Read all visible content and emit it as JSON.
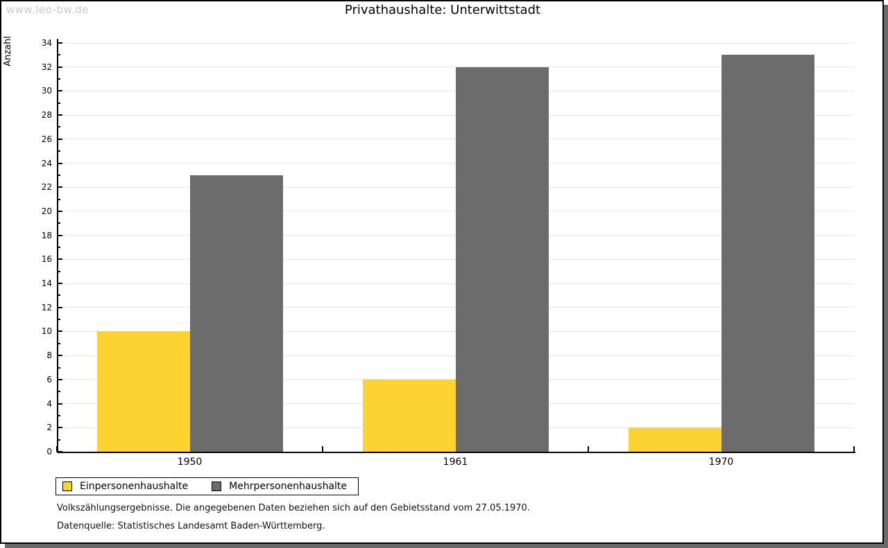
{
  "watermark": "www.leo-bw.de",
  "title": "Privathaushalte: Unterwittstadt",
  "chart_data": {
    "type": "bar",
    "title": "Privathaushalte: Unterwittstadt",
    "categories": [
      "1950",
      "1961",
      "1970"
    ],
    "series": [
      {
        "name": "Einpersonenhaushalte",
        "color": "#fcd330",
        "values": [
          10,
          6,
          2
        ]
      },
      {
        "name": "Mehrpersonenhaushalte",
        "color": "#6c6c6c",
        "values": [
          23,
          32,
          33
        ]
      }
    ],
    "xlabel": "",
    "ylabel": "Anzahl",
    "ylim": [
      0,
      34
    ],
    "ytick_step": 2,
    "y_minor_step": 1,
    "grid": true,
    "legend_position": "bottom-left"
  },
  "colors": {
    "axis": "#000000",
    "gridline": "#e6e6e6",
    "watermark": "#c9c9c9",
    "series_yellow": "#fcd330",
    "series_gray": "#6c6c6c",
    "frame_border": "#000000",
    "frame_shadow": "#6a6a6a"
  },
  "footer": {
    "line1": "Volkszählungsergebnisse. Die angegebenen Daten beziehen sich auf den Gebietsstand vom 27.05.1970.",
    "line2": "Datenquelle: Statistisches Landesamt Baden-Württemberg."
  }
}
